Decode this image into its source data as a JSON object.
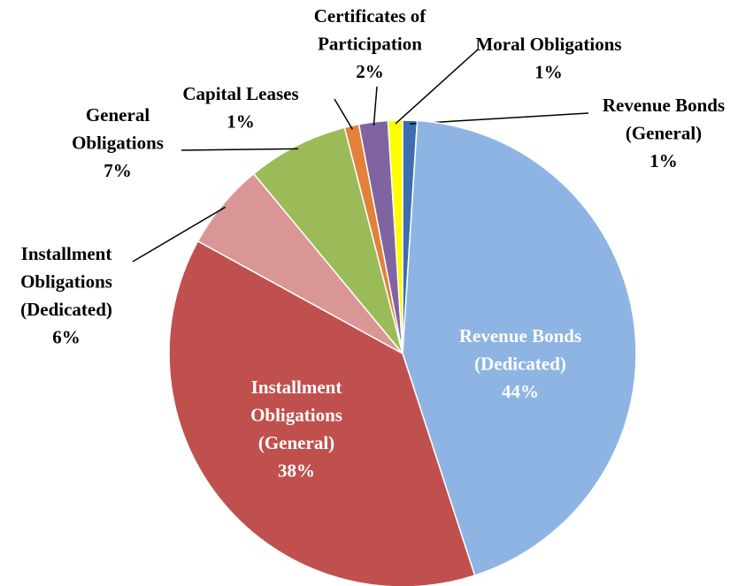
{
  "chart_data": {
    "type": "pie",
    "categories": [
      "Revenue Bonds (General)",
      "Revenue Bonds (Dedicated)",
      "Installment Obligations (General)",
      "Installment Obligations (Dedicated)",
      "General Obligations",
      "Capital Leases",
      "Certificates of Participation",
      "Moral Obligations"
    ],
    "values": [
      1,
      44,
      38,
      6,
      7,
      1,
      2,
      1
    ],
    "value_labels": [
      "1%",
      "44%",
      "38%",
      "6%",
      "7%",
      "1%",
      "2%",
      "1%"
    ],
    "colors": [
      "#3e6db0",
      "#8eb4e3",
      "#c0504d",
      "#d99694",
      "#9bbb59",
      "#e2823a",
      "#8064a2",
      "#ffff00"
    ]
  }
}
